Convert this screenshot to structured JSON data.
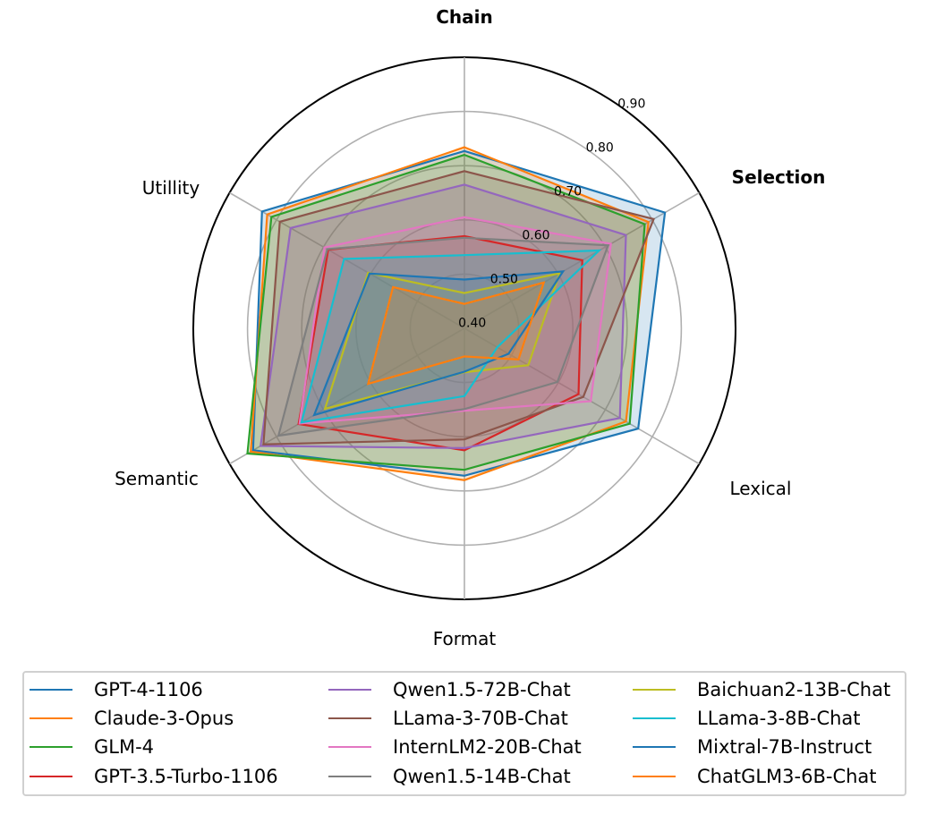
{
  "chart_data": {
    "type": "radar",
    "title": "",
    "axes": [
      "Chain",
      "Selection",
      "Lexical",
      "Format",
      "Semantic",
      "Utillity"
    ],
    "axis_bold": [
      true,
      true,
      false,
      false,
      false,
      false
    ],
    "rlim": [
      0.4,
      0.9
    ],
    "rticks": [
      0.4,
      0.5,
      0.6,
      0.7,
      0.8,
      0.9
    ],
    "rtick_labels": [
      "0.40",
      "0.50",
      "0.60",
      "0.70",
      "0.80",
      "0.90"
    ],
    "grid": true,
    "legend_position": "bottom",
    "legend_columns": 3,
    "series": [
      {
        "name": "GPT-4-1106",
        "color": "#1f77b4",
        "values": [
          0.727,
          0.827,
          0.77,
          0.672,
          0.85,
          0.831
        ]
      },
      {
        "name": "Claude-3-Opus",
        "color": "#ff7f0e",
        "values": [
          0.734,
          0.792,
          0.744,
          0.68,
          0.855,
          0.82
        ]
      },
      {
        "name": "GLM-4",
        "color": "#2ca02c",
        "values": [
          0.72,
          0.784,
          0.752,
          0.661,
          0.862,
          0.811
        ]
      },
      {
        "name": "GPT-3.5-Turbo-1106",
        "color": "#d62728",
        "values": [
          0.57,
          0.651,
          0.643,
          0.625,
          0.753,
          0.69
        ]
      },
      {
        "name": "Qwen1.5-72B-Chat",
        "color": "#9467bd",
        "values": [
          0.665,
          0.744,
          0.731,
          0.621,
          0.834,
          0.77
        ]
      },
      {
        "name": "LLama-3-70B-Chat",
        "color": "#8c564b",
        "values": [
          0.69,
          0.803,
          0.653,
          0.605,
          0.828,
          0.793
        ]
      },
      {
        "name": "InternLM2-20B-Chat",
        "color": "#e377c2",
        "values": [
          0.605,
          0.712,
          0.669,
          0.552,
          0.751,
          0.698
        ]
      },
      {
        "name": "Qwen1.5-14B-Chat",
        "color": "#7f7f7f",
        "values": [
          0.567,
          0.706,
          0.598,
          0.549,
          0.796,
          0.692
        ]
      },
      {
        "name": "Baichuan2-13B-Chat",
        "color": "#bcbd22",
        "values": [
          0.465,
          0.603,
          0.536,
          0.481,
          0.697,
          0.605
        ]
      },
      {
        "name": "LLama-3-8B-Chat",
        "color": "#17becf",
        "values": [
          0.535,
          0.687,
          0.47,
          0.525,
          0.747,
          0.656
        ]
      },
      {
        "name": "Mixtral-7B-Instruct",
        "color": "#1f77b4",
        "values": [
          0.49,
          0.61,
          0.494,
          0.48,
          0.72,
          0.602
        ]
      },
      {
        "name": "ChatGLM3-6B-Chat",
        "color": "#ff7f0e",
        "values": [
          0.445,
          0.569,
          0.515,
          0.452,
          0.605,
          0.552
        ]
      }
    ]
  },
  "legend": {
    "items": [
      {
        "label": "GPT-4-1106",
        "color": "#1f77b4"
      },
      {
        "label": "Claude-3-Opus",
        "color": "#ff7f0e"
      },
      {
        "label": "GLM-4",
        "color": "#2ca02c"
      },
      {
        "label": "GPT-3.5-Turbo-1106",
        "color": "#d62728"
      },
      {
        "label": "Qwen1.5-72B-Chat",
        "color": "#9467bd"
      },
      {
        "label": "LLama-3-70B-Chat",
        "color": "#8c564b"
      },
      {
        "label": "InternLM2-20B-Chat",
        "color": "#e377c2"
      },
      {
        "label": "Qwen1.5-14B-Chat",
        "color": "#7f7f7f"
      },
      {
        "label": "Baichuan2-13B-Chat",
        "color": "#bcbd22"
      },
      {
        "label": "LLama-3-8B-Chat",
        "color": "#17becf"
      },
      {
        "label": "Mixtral-7B-Instruct",
        "color": "#1f77b4"
      },
      {
        "label": "ChatGLM3-6B-Chat",
        "color": "#ff7f0e"
      }
    ]
  }
}
